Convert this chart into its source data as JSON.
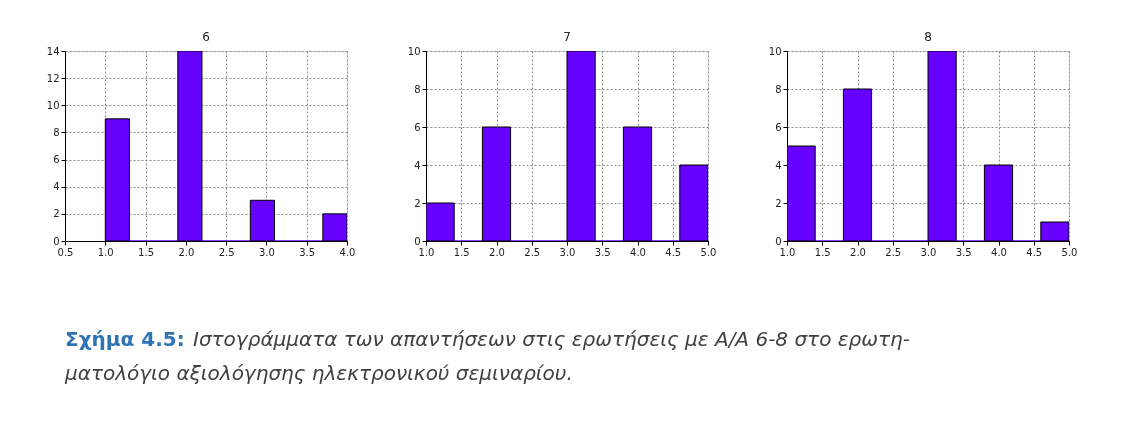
{
  "chart_data": [
    {
      "type": "histogram",
      "title": "6",
      "bins": [
        1.0,
        1.3,
        1.6,
        1.9,
        2.2,
        2.5,
        2.8,
        3.1,
        3.4,
        3.7,
        4.0
      ],
      "values": [
        9,
        0,
        0,
        14,
        0,
        0,
        3,
        0,
        0,
        2
      ],
      "color": "#6600ff",
      "xlim": [
        0.5,
        4.0
      ],
      "xticks": [
        0.5,
        {
          "value": 1,
          "label": "1.0"
        },
        1.5,
        {
          "value": 2,
          "label": "2.0"
        },
        2.5,
        {
          "value": 3,
          "label": "3.0"
        },
        3.5,
        {
          "value": 4,
          "label": "4.0"
        }
      ],
      "ylim": [
        0,
        14
      ],
      "yticks": [
        0,
        2,
        4,
        6,
        8,
        10,
        12,
        14
      ],
      "grid": true,
      "annotations": [
        "Σχήμα 4.5:",
        "Ιστογράμματα των απαντήσεων στις ερωτήσεις με Α/Α 6-8 στο ερωτη-",
        "ματολόγιο αξιολόγησης ηλεκτρονικού σεμιναρίου."
      ]
    },
    {
      "type": "histogram",
      "title": "7",
      "bins": [
        1.0,
        1.4,
        1.8,
        2.2,
        2.6,
        3.0,
        3.4,
        3.8,
        4.2,
        4.6,
        5.0
      ],
      "values": [
        2,
        0,
        6,
        0,
        0,
        10,
        0,
        6,
        0,
        4
      ],
      "color": "#6600ff",
      "xlim": [
        1,
        5
      ],
      "xticks": [
        {
          "value": 1,
          "label": "1.0"
        },
        1.5,
        {
          "value": 2,
          "label": "2.0"
        },
        2.5,
        {
          "value": 3,
          "label": "3.0"
        },
        3.5,
        {
          "value": 4,
          "label": "4.0"
        },
        4.5,
        {
          "value": 5,
          "label": "5.0"
        }
      ],
      "ylim": [
        0,
        10
      ],
      "yticks": [
        0,
        2,
        4,
        6,
        8,
        10
      ],
      "grid": true
    },
    {
      "type": "histogram",
      "title": "8",
      "bins": [
        1.0,
        1.4,
        1.8,
        2.2,
        2.6,
        3.0,
        3.4,
        3.8,
        4.2,
        4.6,
        5.0
      ],
      "values": [
        5,
        0,
        8,
        0,
        0,
        10,
        0,
        4,
        0,
        1
      ],
      "color": "#6600ff",
      "xlim": [
        1,
        5
      ],
      "xticks": [
        {
          "value": 1,
          "label": "1.0"
        },
        1.5,
        {
          "value": 2,
          "label": "2.0"
        },
        2.5,
        {
          "value": 3,
          "label": "3.0"
        },
        3.5,
        {
          "value": 4,
          "label": "4.0"
        },
        4.5,
        {
          "value": 5,
          "label": "5.0"
        }
      ],
      "ylim": [
        0,
        10
      ],
      "yticks": [
        0,
        2,
        4,
        6,
        8,
        10
      ],
      "grid": true
    }
  ]
}
